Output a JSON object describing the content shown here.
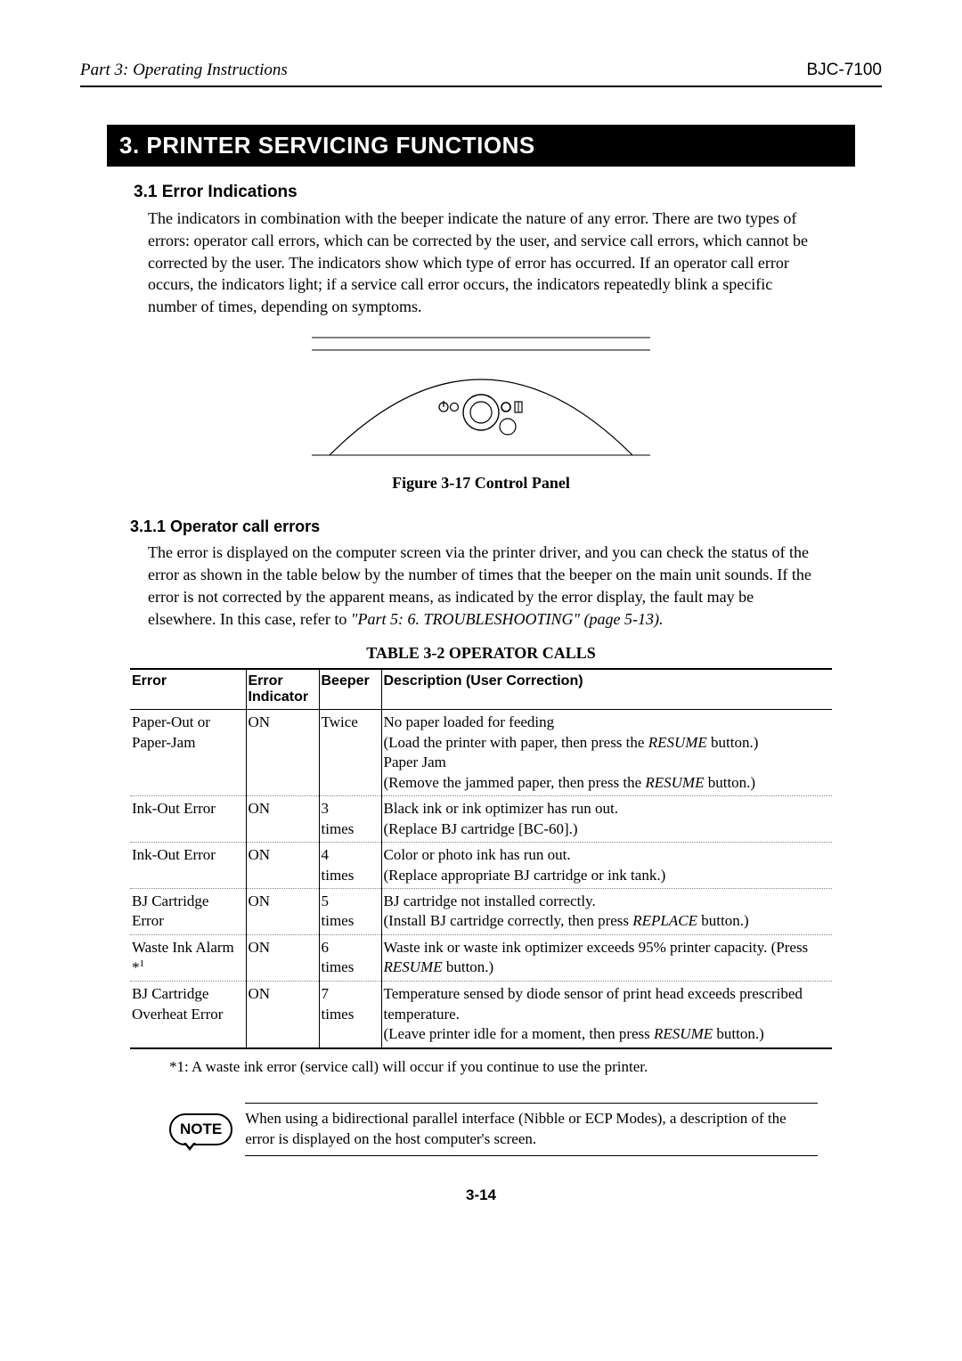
{
  "header": {
    "left": "Part 3: Operating Instructions",
    "right": "BJC-7100"
  },
  "banner": "3. PRINTER SERVICING FUNCTIONS",
  "sec31": {
    "title": "3.1 Error Indications",
    "para": "The indicators in combination with the beeper indicate the nature of any error. There are two types of errors: operator call errors, which can be corrected by the user, and service call errors, which cannot be corrected by the user.  The indicators show which type of error has occurred.  If an operator call error occurs, the indicators light; if a service call error occurs, the indicators repeatedly blink a specific number of times, depending on symptoms."
  },
  "figure": {
    "caption": "Figure 3-17 Control Panel"
  },
  "sec311": {
    "title": "3.1.1 Operator call errors",
    "para_a": "The error is displayed on the computer screen via the printer driver, and you can check the status of the error as shown in the table below by the number of times that the beeper on the main unit sounds.  If the error is not corrected by the apparent means, as indicated by the error display, the fault may be elsewhere.  In this case, refer to ",
    "para_ref": "\"Part 5: 6. TROUBLESHOOTING\" (page 5-13)."
  },
  "table": {
    "caption": "TABLE 3-2 OPERATOR CALLS",
    "headers": {
      "c1": "Error",
      "c2a": "Error",
      "c2b": "Indicator",
      "c3": "Beeper",
      "c4": "Description (User Correction)"
    },
    "rows": [
      {
        "error": "Paper-Out or Paper-Jam",
        "ind": "ON",
        "beep": "Twice",
        "desc": "No paper loaded for feeding\n(Load the printer with paper, then press the RESUME button.)\nPaper Jam\n(Remove the jammed paper, then press the RESUME button.)"
      },
      {
        "error": "Ink-Out Error",
        "ind": "ON",
        "beep": "3 times",
        "desc": "Black ink or ink optimizer has run out.\n(Replace BJ cartridge [BC-60].)"
      },
      {
        "error": "Ink-Out Error",
        "ind": "ON",
        "beep": "4 times",
        "desc": "Color or photo ink has run out.\n(Replace appropriate BJ cartridge or ink tank.)"
      },
      {
        "error": "BJ Cartridge Error",
        "ind": "ON",
        "beep": "5 times",
        "desc": "BJ cartridge not installed correctly.\n(Install BJ cartridge correctly, then press REPLACE button.)"
      },
      {
        "error": "Waste Ink Alarm *1",
        "ind": "ON",
        "beep": "6 times",
        "desc": "Waste ink or waste ink optimizer exceeds 95% printer capacity.  (Press RESUME button.)"
      },
      {
        "error": "BJ Cartridge Overheat Error",
        "ind": "ON",
        "beep": "7 times",
        "desc": "Temperature sensed by diode sensor of print head exceeds prescribed temperature.\n(Leave printer idle for a moment, then press RESUME button.)"
      }
    ]
  },
  "footnote": "*1:  A waste ink error (service call) will occur if you continue to use the printer.",
  "note": {
    "label": "NOTE",
    "text": "When using a bidirectional parallel interface (Nibble or ECP Modes), a description of the error is displayed on the host computer's screen."
  },
  "page_number": "3-14"
}
